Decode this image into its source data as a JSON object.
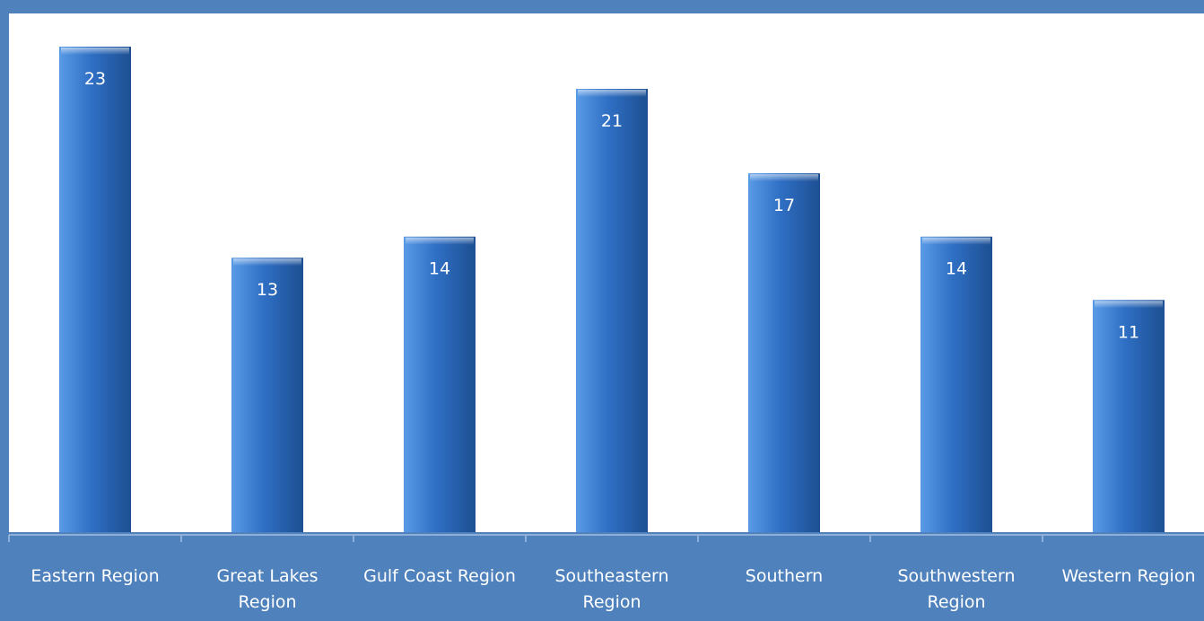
{
  "chart_data": {
    "type": "bar",
    "title": "",
    "xlabel": "",
    "ylabel": "",
    "categories": [
      [
        "Eastern Region"
      ],
      [
        "Great Lakes",
        "Region"
      ],
      [
        "Gulf Coast Region"
      ],
      [
        "Southeastern",
        "Region"
      ],
      [
        "Southern"
      ],
      [
        "Southwestern",
        "Region"
      ],
      [
        "Western Region"
      ]
    ],
    "values": [
      23,
      13,
      14,
      21,
      17,
      14,
      11
    ],
    "ylim": [
      0,
      24
    ],
    "grid": false,
    "legend": "none",
    "colors": {
      "background": "#4f81bd",
      "plot_area": "#ffffff",
      "bar_light": "#5a9be6",
      "bar_mid": "#2f6fc4",
      "bar_dark": "#1d4f92",
      "label": "#ffffff"
    }
  }
}
